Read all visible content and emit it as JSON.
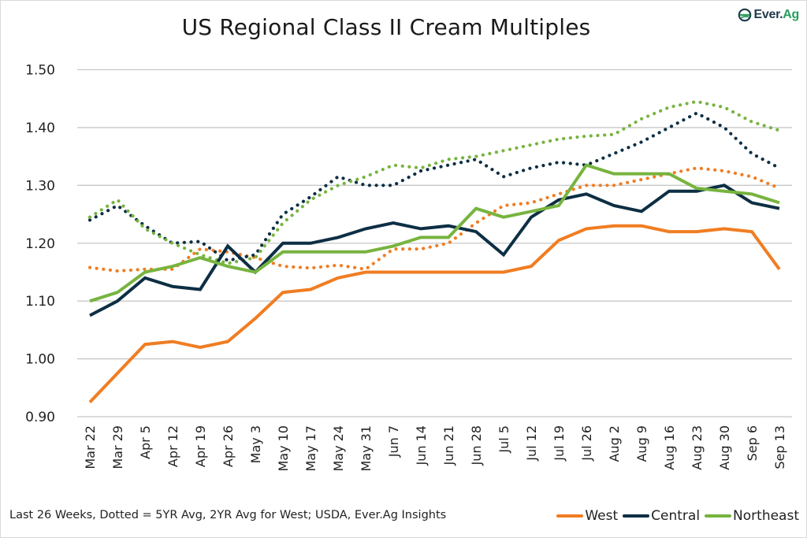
{
  "title": "US Regional Class II Cream Multiples",
  "logo": {
    "name": "Ever.Ag",
    "part1": "Ever.",
    "part2": "Ag"
  },
  "footnote": "Last 26 Weeks, Dotted = 5YR Avg, 2YR Avg for West; USDA, Ever.Ag Insights",
  "colors": {
    "west": "#f07d22",
    "central": "#0d2f44",
    "northeast": "#77b43f",
    "grid": "#c8c8c8"
  },
  "legend": [
    {
      "label": "West",
      "color": "#f07d22"
    },
    {
      "label": "Central",
      "color": "#0d2f44"
    },
    {
      "label": "Northeast",
      "color": "#77b43f"
    }
  ],
  "chart_data": {
    "type": "line",
    "title": "US Regional Class II Cream Multiples",
    "xlabel": "",
    "ylabel": "",
    "ylim": [
      0.9,
      1.5
    ],
    "yticks": [
      "0.90",
      "1.00",
      "1.10",
      "1.20",
      "1.30",
      "1.40",
      "1.50"
    ],
    "grid": true,
    "legend_position": "bottom-right",
    "categories": [
      "Mar 22",
      "Mar 29",
      "Apr 5",
      "Apr 12",
      "Apr 19",
      "Apr 26",
      "May 3",
      "May 10",
      "May 17",
      "May 24",
      "May 31",
      "Jun 7",
      "Jun 14",
      "Jun 21",
      "Jun 28",
      "Jul 5",
      "Jul 12",
      "Jul 19",
      "Jul 26",
      "Aug 2",
      "Aug 9",
      "Aug 16",
      "Aug 23",
      "Aug 30",
      "Sep 6",
      "Sep 13"
    ],
    "series": [
      {
        "name": "West",
        "style": "solid",
        "color": "#f07d22",
        "values": [
          0.925,
          0.975,
          1.025,
          1.03,
          1.02,
          1.03,
          1.07,
          1.115,
          1.12,
          1.14,
          1.15,
          1.15,
          1.15,
          1.15,
          1.15,
          1.15,
          1.16,
          1.205,
          1.225,
          1.23,
          1.23,
          1.22,
          1.22,
          1.225,
          1.22,
          1.155
        ]
      },
      {
        "name": "Central",
        "style": "solid",
        "color": "#0d2f44",
        "values": [
          1.075,
          1.1,
          1.14,
          1.125,
          1.12,
          1.195,
          1.15,
          1.2,
          1.2,
          1.21,
          1.225,
          1.235,
          1.225,
          1.23,
          1.22,
          1.18,
          1.245,
          1.275,
          1.285,
          1.265,
          1.255,
          1.29,
          1.29,
          1.3,
          1.27,
          1.26
        ]
      },
      {
        "name": "Northeast",
        "style": "solid",
        "color": "#77b43f",
        "values": [
          1.1,
          1.115,
          1.15,
          1.16,
          1.175,
          1.16,
          1.15,
          1.185,
          1.185,
          1.185,
          1.185,
          1.195,
          1.21,
          1.21,
          1.26,
          1.245,
          1.255,
          1.265,
          1.335,
          1.32,
          1.32,
          1.32,
          1.295,
          1.29,
          1.285,
          1.27
        ]
      },
      {
        "name": "West 2YR Avg",
        "style": "dotted",
        "color": "#f07d22",
        "values": [
          1.158,
          1.152,
          1.155,
          1.155,
          1.19,
          1.185,
          1.175,
          1.16,
          1.157,
          1.162,
          1.155,
          1.19,
          1.19,
          1.2,
          1.235,
          1.265,
          1.27,
          1.285,
          1.3,
          1.3,
          1.31,
          1.32,
          1.33,
          1.325,
          1.315,
          1.295
        ]
      },
      {
        "name": "Central 5YR Avg",
        "style": "dotted",
        "color": "#0d2f44",
        "values": [
          1.24,
          1.265,
          1.23,
          1.2,
          1.203,
          1.17,
          1.18,
          1.25,
          1.28,
          1.315,
          1.3,
          1.3,
          1.325,
          1.335,
          1.345,
          1.315,
          1.33,
          1.34,
          1.335,
          1.355,
          1.375,
          1.4,
          1.425,
          1.4,
          1.355,
          1.33
        ]
      },
      {
        "name": "Northeast 5YR Avg",
        "style": "dotted",
        "color": "#77b43f",
        "values": [
          1.245,
          1.275,
          1.225,
          1.2,
          1.18,
          1.165,
          1.175,
          1.235,
          1.275,
          1.3,
          1.315,
          1.335,
          1.33,
          1.345,
          1.35,
          1.36,
          1.37,
          1.38,
          1.385,
          1.388,
          1.415,
          1.435,
          1.445,
          1.435,
          1.41,
          1.395
        ]
      }
    ]
  }
}
